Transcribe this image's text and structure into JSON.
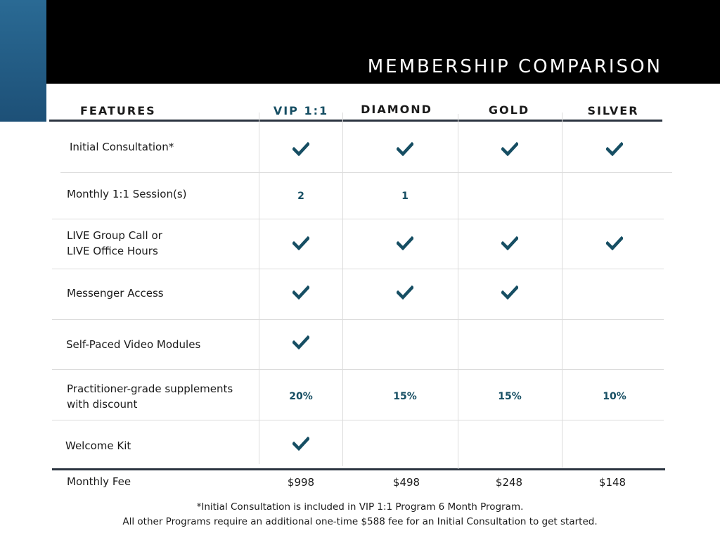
{
  "header": {
    "title": "MEMBERSHIP COMPARISON"
  },
  "columns": {
    "features": "FEATURES",
    "vip": "VIP 1:1",
    "diamond": "DIAMOND",
    "gold": "GOLD",
    "silver": "SILVER"
  },
  "rows": [
    {
      "label": "Initial Consultation*",
      "vip": "check",
      "diamond": "check",
      "gold": "check",
      "silver": "check"
    },
    {
      "label": "Monthly 1:1 Session(s)",
      "vip": "2",
      "diamond": "1",
      "gold": "",
      "silver": ""
    },
    {
      "label_line1": "LIVE Group Call or",
      "label_line2": "LIVE Office Hours",
      "vip": "check",
      "diamond": "check",
      "gold": "check",
      "silver": "check"
    },
    {
      "label": "Messenger Access",
      "vip": "check",
      "diamond": "check",
      "gold": "check",
      "silver": ""
    },
    {
      "label": "Self-Paced Video Modules",
      "vip": "check",
      "diamond": "",
      "gold": "",
      "silver": ""
    },
    {
      "label_line1": "Practitioner-grade supplements",
      "label_line2": "with discount",
      "vip": "20%",
      "diamond": "15%",
      "gold": "15%",
      "silver": "10%"
    },
    {
      "label": "Welcome Kit",
      "vip": "check",
      "diamond": "",
      "gold": "",
      "silver": ""
    }
  ],
  "fee": {
    "label": "Monthly Fee",
    "vip": "$998",
    "diamond": "$498",
    "gold": "$248",
    "silver": "$148"
  },
  "footnote": {
    "line1": "*Initial Consultation is included in VIP 1:1 Program 6 Month Program.",
    "line2": "All other Programs require an additional one-time $588 fee for an Initial Consultation to get started."
  },
  "colors": {
    "accent": "#164e63",
    "header_bg": "#000000",
    "side_block": "#235d86"
  },
  "icons": {
    "check": "check-icon"
  }
}
